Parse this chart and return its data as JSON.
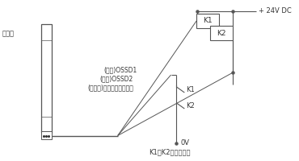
{
  "bg_color": "#ffffff",
  "line_color": "#555555",
  "text_color": "#333333",
  "receiver_label": "受光器",
  "plus24v_label": "+ 24V DC",
  "ov_label": "0V",
  "k1_label": "K1",
  "k2_label": "K2",
  "k1k2_label": "K1、K2：外部設備",
  "wire1_label": "(黒色)OSSD1",
  "wire2_label": "(白色)OSSD2",
  "wire3_label": "(黄綠色)外部設備監控輸入"
}
